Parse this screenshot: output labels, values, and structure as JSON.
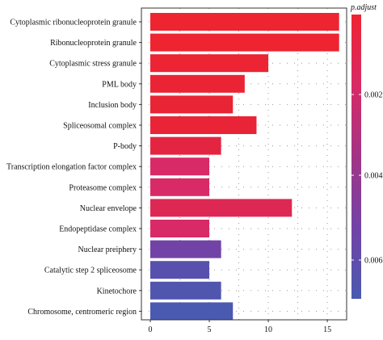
{
  "chart_data": {
    "type": "bar",
    "orientation": "horizontal",
    "categories": [
      "Cytoplasmic ribonucleoprotein granule",
      "Ribonucleoprotein granule",
      "Cytoplasmic stress granule",
      "PML body",
      "Inclusion body",
      "Spliceosomal complex",
      "P-body",
      "Transcription elongation factor complex",
      "Proteasome complex",
      "Nuclear envelope",
      "Endopeptidase complex",
      "Nuclear preiphery",
      "Catalytic step 2 spliceosome",
      "Kinetochore",
      "Chromosome, centromeric region"
    ],
    "values": [
      16,
      16,
      10,
      8,
      7,
      9,
      6,
      5,
      5,
      12,
      5,
      6,
      5,
      6,
      7
    ],
    "colors": [
      "#ee2431",
      "#ee2431",
      "#ec2433",
      "#ea2434",
      "#e82435",
      "#e82436",
      "#e42542",
      "#d82a66",
      "#d82a66",
      "#de2854",
      "#d82a66",
      "#7243a6",
      "#5751ad",
      "#5056ae",
      "#4a5ab0"
    ],
    "xlim": [
      0,
      16.5
    ],
    "xticks": [
      "0",
      "5",
      "10",
      "15"
    ],
    "grid": true,
    "legend": {
      "title": "p.adjust",
      "ticks": [
        "0.002",
        "0.004",
        "0.006"
      ],
      "gradient": [
        "#4a5ab0",
        "#7243a6",
        "#a23486",
        "#d82a66",
        "#ee2431"
      ],
      "placement": "right"
    }
  }
}
